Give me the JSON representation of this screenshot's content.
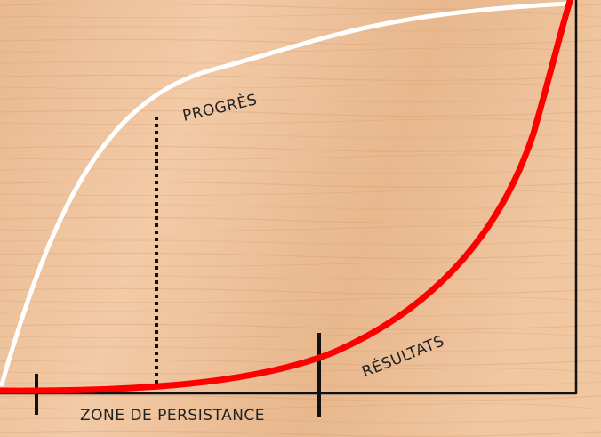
{
  "labels": {
    "progress": "PROGRÈS",
    "results": "RÉSULTATS",
    "zone": "ZONE DE PERSISTANCE"
  },
  "colors": {
    "wood_light": "#f0c9a6",
    "wood_dark": "#d9a57b",
    "progress_curve": "#ffffff",
    "results_curve": "#ff0000",
    "axes": "#111111"
  }
}
